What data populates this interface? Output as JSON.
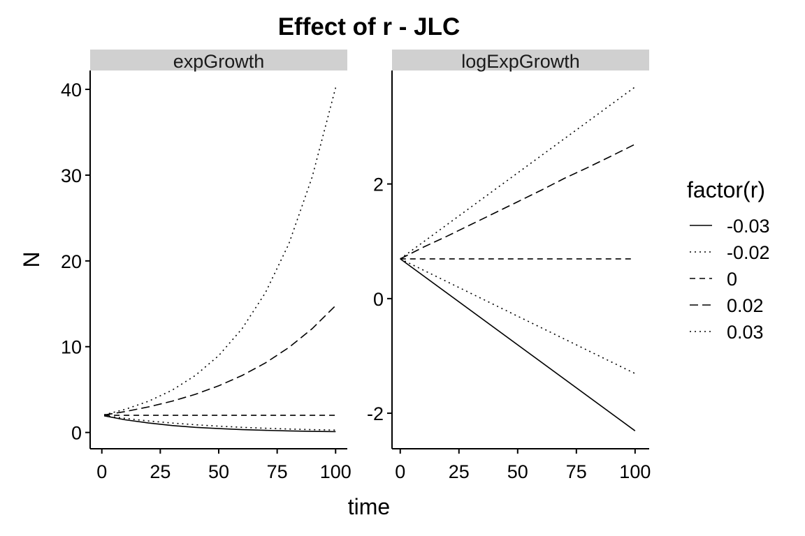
{
  "chart_data": {
    "type": "line",
    "title": "Effect of r - JLC",
    "xlabel": "time",
    "ylabel": "N",
    "legend": {
      "title": "factor(r)",
      "placement": "right",
      "entries": [
        "-0.03",
        "-0.02",
        "0",
        "0.02",
        "0.03"
      ]
    },
    "grid": false,
    "panels": [
      {
        "name": "expGrowth",
        "x_ticks": [
          0,
          25,
          50,
          75,
          100
        ],
        "x_tick_labels": [
          "0",
          "25",
          "50",
          "75",
          "100"
        ],
        "y_ticks": [
          0,
          10,
          20,
          30,
          40
        ],
        "y_tick_labels": [
          "0",
          "10",
          "20",
          "30",
          "40"
        ],
        "xlim": [
          -5,
          105
        ],
        "ylim": [
          -1.9,
          42.2
        ],
        "series": [
          {
            "name": "-0.03",
            "linestyle": "solid",
            "x": [
              1,
              10,
              20,
              30,
              40,
              50,
              60,
              70,
              80,
              90,
              100
            ],
            "y": [
              1.94,
              1.48,
              1.1,
              0.81,
              0.6,
              0.45,
              0.33,
              0.25,
              0.18,
              0.13,
              0.1
            ]
          },
          {
            "name": "-0.02",
            "linestyle": "dotted",
            "x": [
              1,
              10,
              20,
              30,
              40,
              50,
              60,
              70,
              80,
              90,
              100
            ],
            "y": [
              1.96,
              1.64,
              1.34,
              1.1,
              0.9,
              0.74,
              0.6,
              0.49,
              0.4,
              0.33,
              0.27
            ]
          },
          {
            "name": "0",
            "linestyle": "dashed",
            "x": [
              1,
              10,
              20,
              30,
              40,
              50,
              60,
              70,
              80,
              90,
              100
            ],
            "y": [
              2,
              2,
              2,
              2,
              2,
              2,
              2,
              2,
              2,
              2,
              2
            ]
          },
          {
            "name": "0.02",
            "linestyle": "longdash",
            "x": [
              1,
              10,
              20,
              30,
              40,
              50,
              60,
              70,
              80,
              90,
              100
            ],
            "y": [
              2.04,
              2.44,
              2.98,
              3.64,
              4.45,
              5.44,
              6.64,
              8.11,
              9.91,
              12.1,
              14.8
            ]
          },
          {
            "name": "0.03",
            "linestyle": "dotted",
            "x": [
              1,
              10,
              20,
              30,
              40,
              50,
              60,
              70,
              80,
              90,
              100
            ],
            "y": [
              2.06,
              2.7,
              3.64,
              4.92,
              6.64,
              8.96,
              12.1,
              16.3,
              22.0,
              29.8,
              40.2
            ]
          }
        ]
      },
      {
        "name": "logExpGrowth",
        "x_ticks": [
          0,
          25,
          50,
          75,
          100
        ],
        "x_tick_labels": [
          "0",
          "25",
          "50",
          "75",
          "100"
        ],
        "y_ticks": [
          -2,
          0,
          2
        ],
        "y_tick_labels": [
          "-2",
          "0",
          "2"
        ],
        "xlim": [
          -3.5,
          106
        ],
        "ylim": [
          -2.62,
          3.98
        ],
        "series": [
          {
            "name": "-0.03",
            "linestyle": "solid",
            "x": [
              0,
              100
            ],
            "y": [
              0.693,
              -2.307
            ]
          },
          {
            "name": "-0.02",
            "linestyle": "dotted",
            "x": [
              0,
              100
            ],
            "y": [
              0.693,
              -1.307
            ]
          },
          {
            "name": "0",
            "linestyle": "dashed",
            "x": [
              0,
              100
            ],
            "y": [
              0.693,
              0.693
            ]
          },
          {
            "name": "0.02",
            "linestyle": "longdash",
            "x": [
              0,
              10,
              20,
              30,
              40,
              50,
              60,
              70,
              80,
              90,
              100
            ],
            "y": [
              0.693,
              0.9,
              1.09,
              1.29,
              1.49,
              1.69,
              1.89,
              2.1,
              2.29,
              2.49,
              2.693
            ]
          },
          {
            "name": "0.03",
            "linestyle": "dotted",
            "x": [
              0,
              100
            ],
            "y": [
              0.693,
              3.693
            ]
          }
        ]
      }
    ],
    "colors": {
      "line": "#000000",
      "strip_fill": "#d0d0d0",
      "axis": "#000000"
    }
  }
}
